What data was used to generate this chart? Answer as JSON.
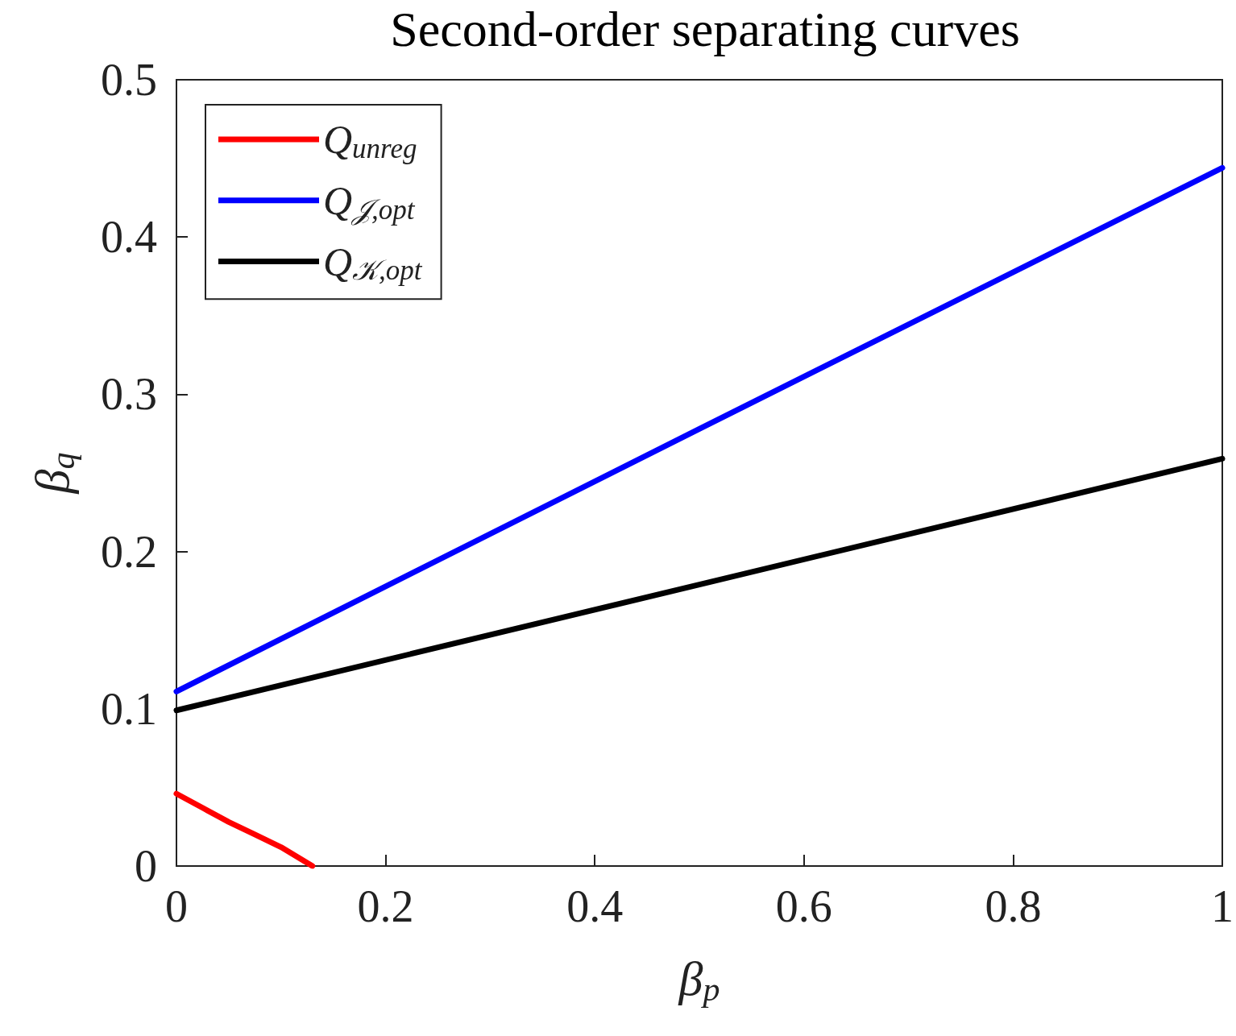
{
  "chart_data": {
    "type": "line",
    "title": "Second-order separating curves",
    "xlabel": "β$_{p}$",
    "ylabel": "β$_{q}$",
    "xlim": [
      0,
      1
    ],
    "xticks": [
      0,
      0.2,
      0.4,
      0.6,
      0.8,
      1
    ],
    "ylim": [
      0,
      0.5
    ],
    "yticks": [
      0,
      0.1,
      0.2,
      0.3,
      0.4,
      0.5
    ],
    "grid": false,
    "legend": "top left",
    "marker": "none",
    "line_style": "solid",
    "series": [
      {
        "name": "Q$_{unreg}$",
        "color": "#ff0000",
        "x": [
          0,
          0.025,
          0.05,
          0.075,
          0.1,
          0.13
        ],
        "values": [
          0.046,
          0.037,
          0.028,
          0.02,
          0.012,
          0
        ]
      },
      {
        "name": "Q$_{𝒥,opt}$",
        "color": "#0000ff",
        "x": [
          0,
          0.5,
          1
        ],
        "values": [
          0.111,
          0.278,
          0.444
        ]
      },
      {
        "name": "Q$_{𝒦,opt}$",
        "color": "#000000",
        "x": [
          0,
          0.5,
          1
        ],
        "values": [
          0.099,
          0.179,
          0.259
        ]
      }
    ]
  }
}
